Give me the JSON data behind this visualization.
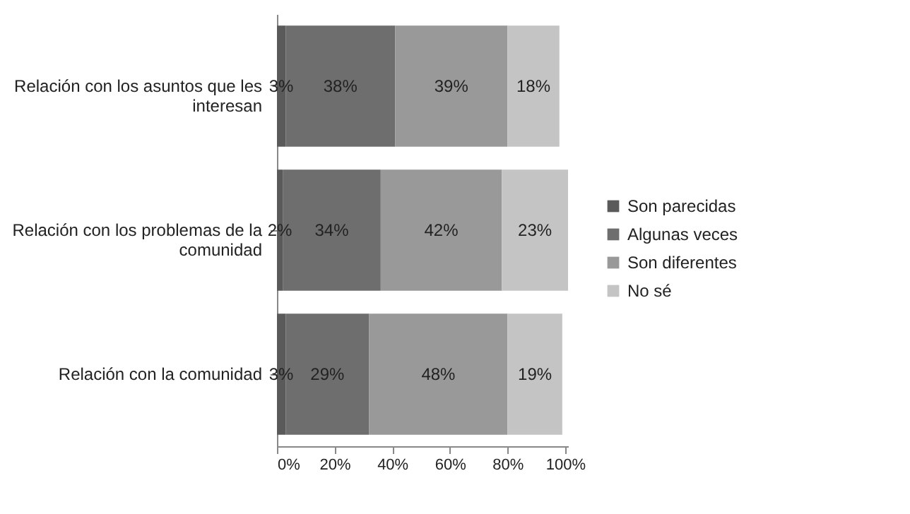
{
  "chart_data": {
    "type": "bar",
    "orientation": "horizontal",
    "stacked": true,
    "categories": [
      "Relación con los asuntos que les interesan",
      "Relación con los problemas de la comunidad",
      "Relación con la comunidad"
    ],
    "series": [
      {
        "name": "Son parecidas",
        "color": "#5a5a5a",
        "values": [
          3,
          2,
          3
        ],
        "value_labels": [
          "3%",
          "2%",
          "3%"
        ]
      },
      {
        "name": "Algunas veces",
        "color": "#6e6e6e",
        "values": [
          38,
          34,
          29
        ],
        "value_labels": [
          "38%",
          "34%",
          "29%"
        ]
      },
      {
        "name": "Son diferentes",
        "color": "#999999",
        "values": [
          39,
          42,
          48
        ],
        "value_labels": [
          "39%",
          "42%",
          "48%"
        ]
      },
      {
        "name": "No sé",
        "color": "#c4c4c4",
        "values": [
          18,
          23,
          19
        ],
        "value_labels": [
          "18%",
          "23%",
          "19%"
        ]
      }
    ],
    "xlim": [
      0,
      101
    ],
    "xticks": [
      {
        "value": 0,
        "label": "0%"
      },
      {
        "value": 20,
        "label": "20%"
      },
      {
        "value": 40,
        "label": "40%"
      },
      {
        "value": 60,
        "label": "60%"
      },
      {
        "value": 80,
        "label": "80%"
      },
      {
        "value": 100,
        "label": "100%"
      }
    ],
    "legend": "right",
    "grid": false
  }
}
